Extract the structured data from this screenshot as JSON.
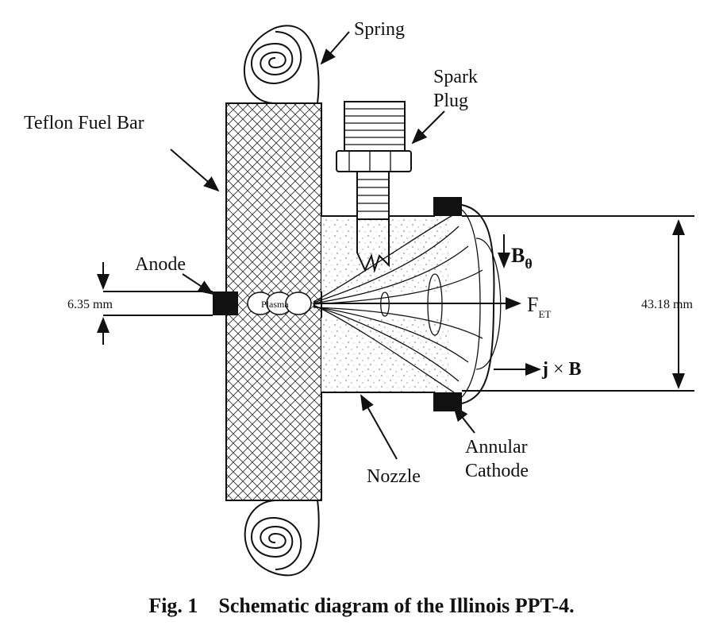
{
  "labels": {
    "spring": "Spring",
    "spark_plug_line1": "Spark",
    "spark_plug_line2": "Plug",
    "fuel_bar": "Teflon Fuel Bar",
    "anode": "Anode",
    "plasma": "Plasma",
    "gap_dimension": "6.35 mm",
    "diameter_dimension": "43.18 mm",
    "b_theta_main": "B",
    "b_theta_sub": "θ",
    "force_main": "F",
    "force_sub": "ET",
    "jxb_j": "j",
    "jxb_times": " × ",
    "jxb_b": "B",
    "nozzle": "Nozzle",
    "cathode_line1": "Annular",
    "cathode_line2": "Cathode"
  },
  "caption": {
    "fig_number": "Fig. 1",
    "text": "Schematic diagram of the Illinois PPT-4."
  }
}
